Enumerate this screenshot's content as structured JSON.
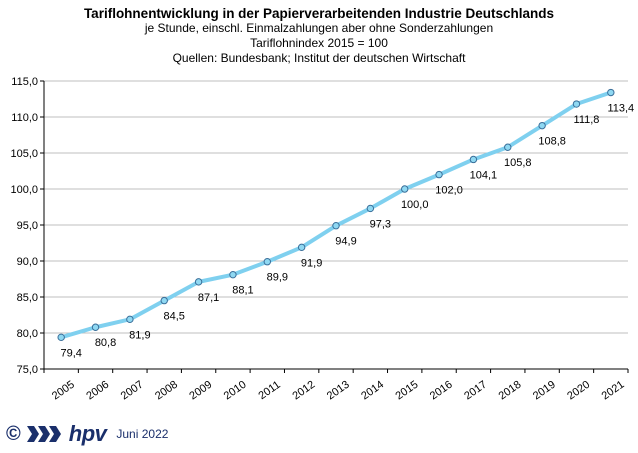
{
  "header": {
    "title": "Tariflohnentwicklung in der Papierverarbeitenden Industrie Deutschlands",
    "subtitle1": "je Stunde,  einschl.  Einmalzahlungen  aber ohne Sonderzahlungen",
    "subtitle2": "Tariflohnindex  2015  = 100",
    "subtitle3": "Quellen: Bundesbank;  Institut der deutschen Wirtschaft"
  },
  "chart_data": {
    "type": "line",
    "title": "Tariflohnentwicklung in der Papierverarbeitenden Industrie Deutschlands",
    "categories": [
      "2005",
      "2006",
      "2007",
      "2008",
      "2009",
      "2010",
      "2011",
      "2012",
      "2013",
      "2014",
      "2015",
      "2016",
      "2017",
      "2018",
      "2019",
      "2020",
      "2021"
    ],
    "values": [
      79.4,
      80.8,
      81.9,
      84.5,
      87.1,
      88.1,
      89.9,
      91.9,
      94.9,
      97.3,
      100.0,
      102.0,
      104.1,
      105.8,
      108.8,
      111.8,
      113.4
    ],
    "data_labels": [
      "79,4",
      "80,8",
      "81,9",
      "84,5",
      "87,1",
      "88,1",
      "89,9",
      "91,9",
      "94,9",
      "97,3",
      "100,0",
      "102,0",
      "104,1",
      "105,8",
      "108,8",
      "111,8",
      "113,4"
    ],
    "ylim": [
      75,
      115
    ],
    "yticks": [
      75,
      80,
      85,
      90,
      95,
      100,
      105,
      110,
      115
    ],
    "ytick_labels": [
      "75,0",
      "80,0",
      "85,0",
      "90,0",
      "95,0",
      "100,0",
      "105,0",
      "110,0",
      "115,0"
    ],
    "grid": true,
    "line_color": "#7fd0ef",
    "marker_color": "#8fd8f2",
    "marker_edge": "#3a6f9a",
    "xlabel": "",
    "ylabel": ""
  },
  "footer": {
    "copyright_symbol": "©",
    "logo_text": "hpv",
    "date": "Juni 2022",
    "logo_color": "#1a2f6b"
  }
}
